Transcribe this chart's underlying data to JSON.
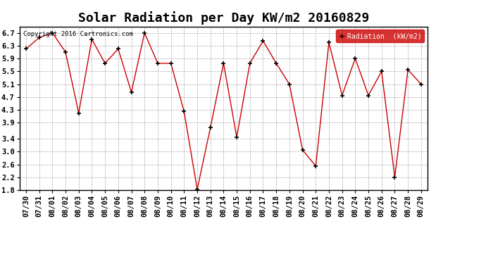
{
  "title": "Solar Radiation per Day KW/m2 20160829",
  "copyright": "Copyright 2016 Cartronics.com",
  "legend_label": "Radiation  (kW/m2)",
  "dates": [
    "07/30",
    "07/31",
    "08/01",
    "08/02",
    "08/03",
    "08/04",
    "08/05",
    "08/06",
    "08/07",
    "08/08",
    "08/09",
    "08/10",
    "08/11",
    "08/12",
    "08/13",
    "08/14",
    "08/15",
    "08/16",
    "08/17",
    "08/18",
    "08/19",
    "08/20",
    "08/21",
    "08/22",
    "08/23",
    "08/24",
    "08/25",
    "08/26",
    "08/27",
    "08/28",
    "08/29"
  ],
  "values": [
    6.2,
    6.55,
    6.7,
    6.1,
    4.2,
    6.5,
    5.75,
    6.2,
    4.85,
    6.7,
    5.75,
    5.75,
    4.25,
    1.82,
    3.75,
    5.75,
    3.45,
    5.75,
    6.45,
    5.75,
    5.1,
    3.05,
    2.55,
    6.4,
    4.75,
    5.9,
    4.75,
    5.5,
    2.2,
    5.55,
    5.1
  ],
  "line_color": "#cc0000",
  "marker_color": "#000000",
  "background_color": "#ffffff",
  "grid_color": "#aaaaaa",
  "ylim": [
    1.8,
    6.9
  ],
  "yticks": [
    1.8,
    2.2,
    2.6,
    3.0,
    3.4,
    3.9,
    4.3,
    4.7,
    5.1,
    5.5,
    5.9,
    6.3,
    6.7
  ],
  "legend_bg": "#cc0000",
  "legend_text_color": "#ffffff",
  "title_fontsize": 13,
  "tick_fontsize": 7.5,
  "border_color": "#000000"
}
